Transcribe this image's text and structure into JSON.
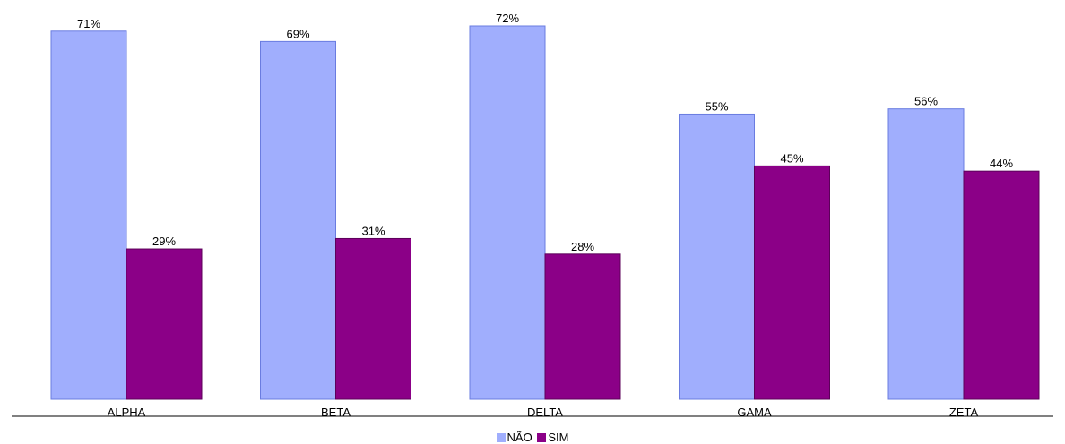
{
  "chart_data": {
    "type": "bar",
    "categories": [
      "ALPHA",
      "BETA",
      "DELTA",
      "GAMA",
      "ZETA"
    ],
    "series": [
      {
        "name": "NÃO",
        "values": [
          71,
          69,
          72,
          55,
          56
        ],
        "labels": [
          "71%",
          "69%",
          "72%",
          "55%",
          "56%"
        ],
        "color": "#a0aefd",
        "stroke": "#6a7ce0"
      },
      {
        "name": "SIM",
        "values": [
          29,
          31,
          28,
          45,
          44
        ],
        "labels": [
          "29%",
          "31%",
          "28%",
          "45%",
          "44%"
        ],
        "color": "#8b0087",
        "stroke": "#5c005a"
      }
    ],
    "ylim": [
      0,
      72
    ],
    "grid": false,
    "legend_position": "bottom-center",
    "title": "",
    "xlabel": "",
    "ylabel": ""
  }
}
